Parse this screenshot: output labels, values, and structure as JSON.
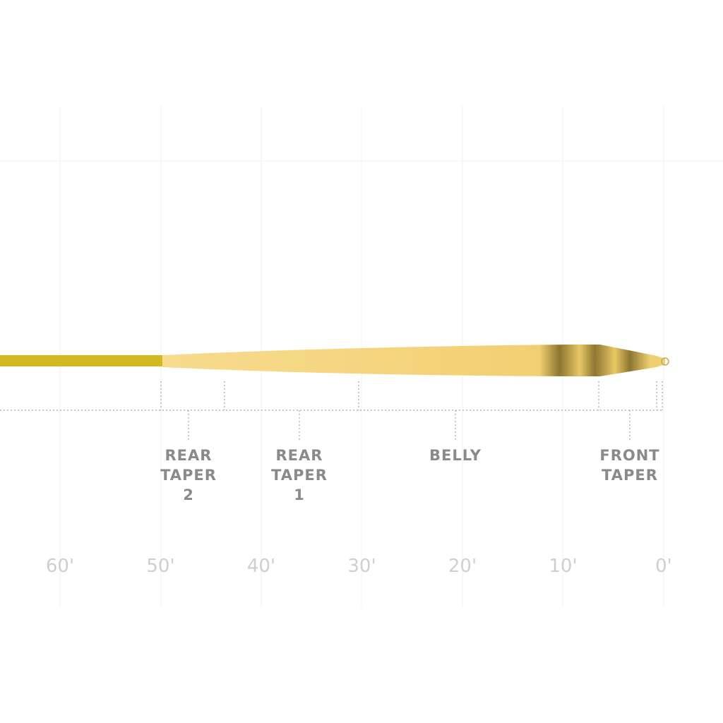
{
  "sections": [
    {
      "lines": [
        "REAR",
        "TAPER",
        "2"
      ]
    },
    {
      "lines": [
        "REAR",
        "TAPER",
        "1"
      ]
    },
    {
      "lines": [
        "BELLY"
      ]
    },
    {
      "lines": [
        "FRONT",
        "TAPER"
      ]
    }
  ],
  "distance_labels": [
    "60'",
    "50'",
    "40'",
    "30'",
    "20'",
    "10'",
    "0'"
  ]
}
